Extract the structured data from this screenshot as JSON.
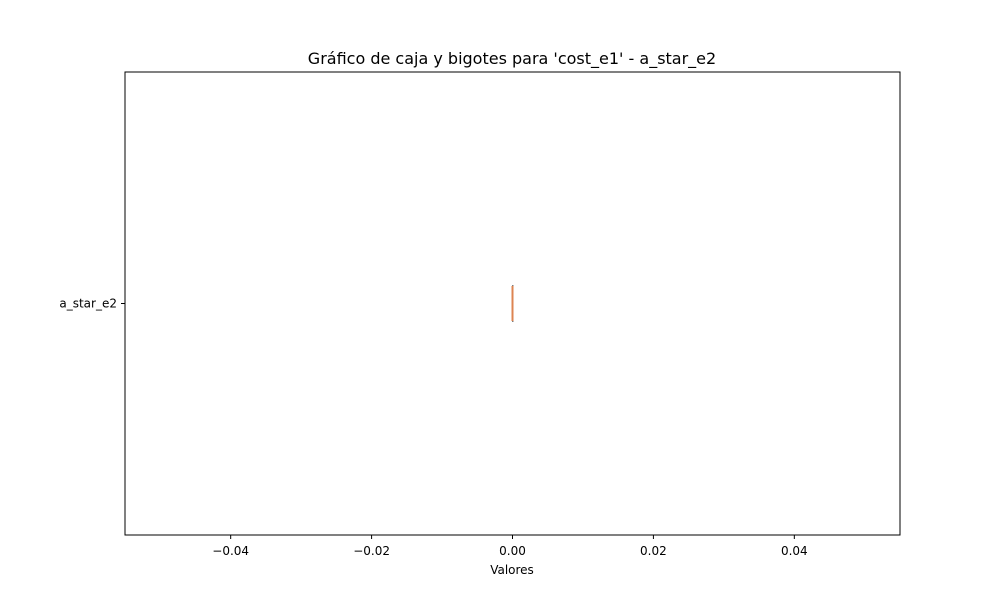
{
  "chart_data": {
    "type": "boxplot",
    "orientation": "horizontal",
    "title": "Gráfico de caja y bigotes para 'cost_e1' - a_star_e2",
    "xlabel": "Valores",
    "ylabel": "",
    "xlim": [
      -0.055,
      0.055
    ],
    "x_ticks": [
      -0.04,
      -0.02,
      0.0,
      0.02,
      0.04
    ],
    "x_tick_labels": [
      "−0.04",
      "−0.02",
      "0.00",
      "0.02",
      "0.04"
    ],
    "categories": [
      "a_star_e2"
    ],
    "boxes": [
      {
        "category": "a_star_e2",
        "whislo": 0.0,
        "q1": 0.0,
        "median": 0.0,
        "q3": 0.0,
        "whishi": 0.0
      }
    ],
    "grid": false,
    "colors": {
      "box": "#000000",
      "median": "#dd8452",
      "axes": "#000000"
    }
  }
}
